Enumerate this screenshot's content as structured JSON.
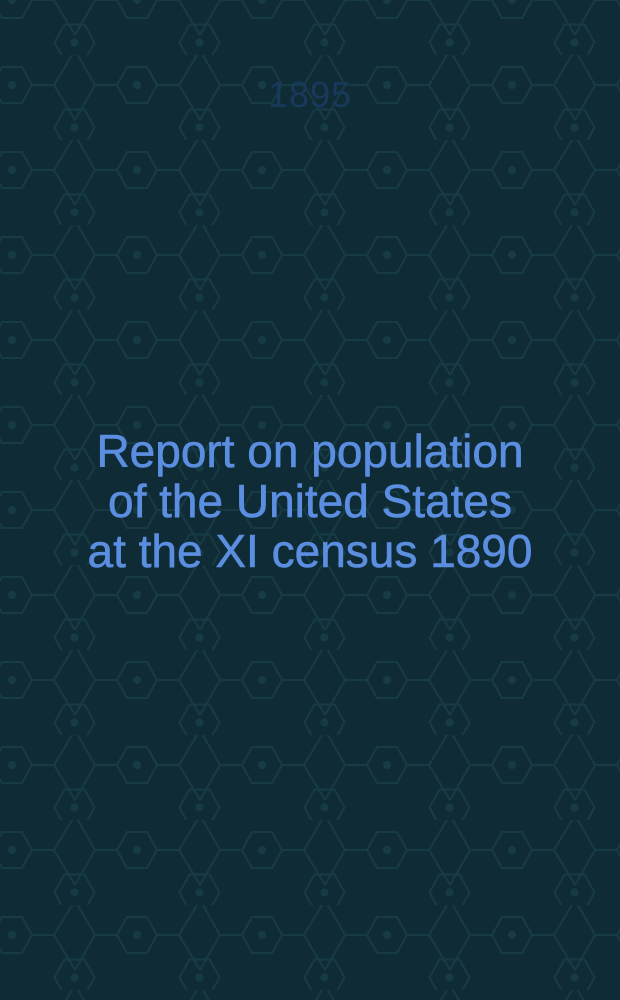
{
  "cover": {
    "year": "1895",
    "title_lines": [
      "Report on population",
      "of the United States",
      "at the XI census 1890"
    ]
  },
  "colors": {
    "background": "#0f2c36",
    "pattern": "#173b45",
    "year": "#173a5c",
    "title": "#5b8ee0"
  }
}
